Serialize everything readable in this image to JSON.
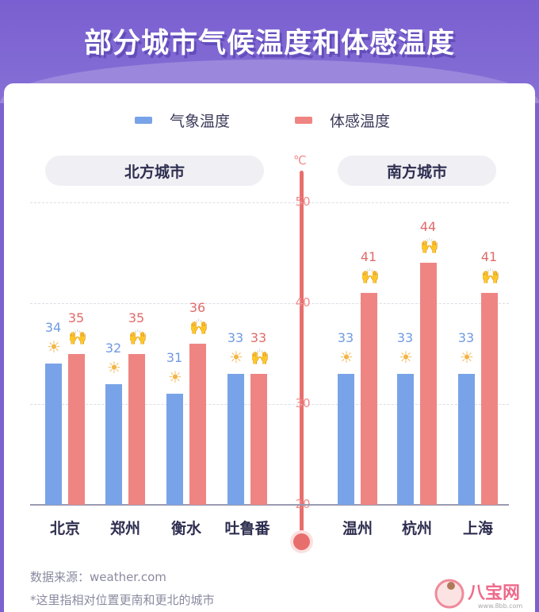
{
  "chart_data": {
    "type": "bar",
    "title": "部分城市气候温度和体感温度",
    "unit": "℃",
    "ylim": [
      20,
      50
    ],
    "yticks": [
      20,
      30,
      40,
      50
    ],
    "grid": true,
    "legend_placement": "top",
    "groups": [
      {
        "label": "北方城市",
        "categories": [
          "北京",
          "郑州",
          "衡水",
          "吐鲁番"
        ]
      },
      {
        "label": "南方城市",
        "categories": [
          "温州",
          "杭州",
          "上海"
        ]
      }
    ],
    "categories": [
      "北京",
      "郑州",
      "衡水",
      "吐鲁番",
      "温州",
      "杭州",
      "上海"
    ],
    "series": [
      {
        "name": "气象温度",
        "color": "#79a3e8",
        "icon": "sun-icon",
        "values": [
          34,
          32,
          31,
          33,
          33,
          33,
          33
        ]
      },
      {
        "name": "体感温度",
        "color": "#ef8583",
        "icon": "person-hot-icon",
        "values": [
          35,
          35,
          36,
          33,
          41,
          44,
          41
        ]
      }
    ]
  },
  "notes": [
    "数据来源：weather.com",
    "*这里指相对位置更南和更北的城市"
  ],
  "logo": {
    "text": "八宝网",
    "url": "www.8bb.com"
  }
}
